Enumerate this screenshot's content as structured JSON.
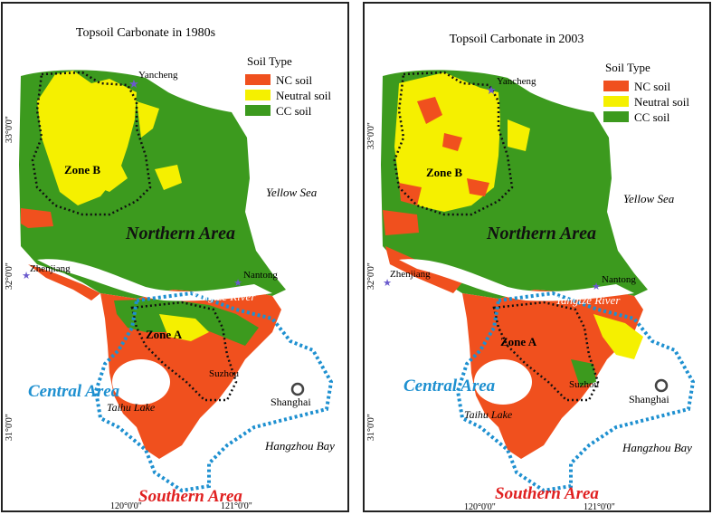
{
  "panels": [
    {
      "title": "Topsoil Carbonate in 1980s",
      "legend": {
        "title": "Soil Type",
        "items": [
          "NC soil",
          "Neutral soil",
          "CC soil"
        ]
      }
    },
    {
      "title": "Topsoil Carbonate in 2003",
      "legend": {
        "title": "Soil Type",
        "items": [
          "NC soil",
          "Neutral soil",
          "CC soil"
        ]
      }
    }
  ],
  "labels": {
    "yancheng": "Yancheng",
    "zhenjiang": "Zhenjiang",
    "nantong": "Nantong",
    "suzhou": "Suzhou",
    "shanghai": "Shanghai",
    "taihu": "Taihu Lake",
    "yellow_sea": "Yellow Sea",
    "yangtze": "Yangtze River",
    "hangzhou_bay": "Hangzhou Bay",
    "zone_a": "Zone A",
    "zone_b": "Zone B",
    "northern_area": "Northern  Area",
    "central_area": "Central Area",
    "southern_area": "Southern  Area"
  },
  "axes": {
    "lat": [
      "33°0'0\"",
      "32°0'0\"",
      "31°0'0\""
    ],
    "lon": [
      "120°0'0\"",
      "121°0'0\""
    ]
  },
  "colors": {
    "nc": "#f0501e",
    "neutral": "#f5f000",
    "cc": "#3c9a1e",
    "central_area": "#1e90d0",
    "southern_area": "#e02020",
    "marker": "#6a5acd"
  }
}
